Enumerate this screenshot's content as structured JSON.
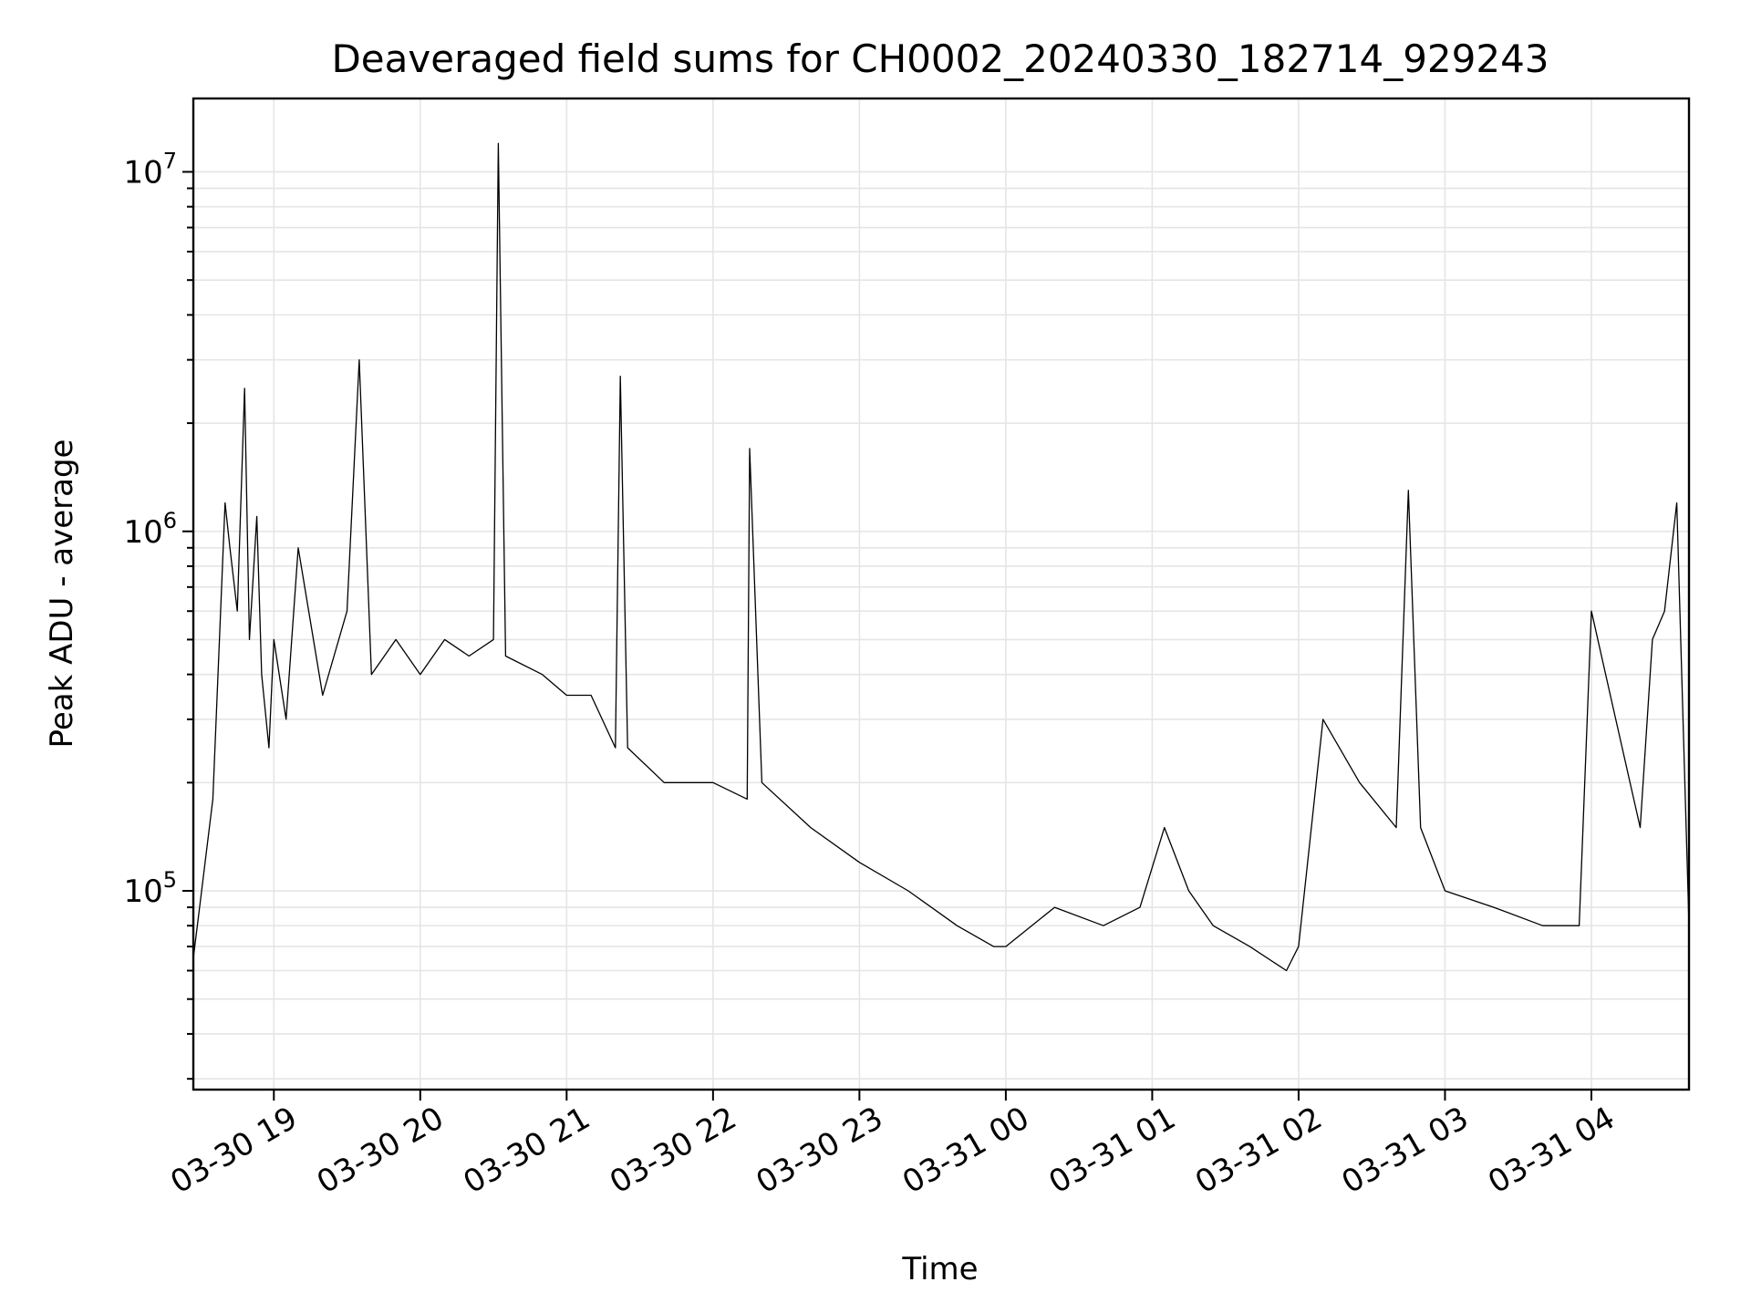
{
  "chart_data": {
    "type": "line",
    "title": "Deaveraged field sums for CH0002_20240330_182714_929243",
    "xlabel": "Time",
    "ylabel": "Peak ADU - average",
    "yscale": "log",
    "grid": true,
    "xlim": [
      "2024-03-30 18:27",
      "2024-03-31 04:40"
    ],
    "ylim": [
      28000,
      16000000
    ],
    "x_ticks": [
      {
        "label": "03-30 19",
        "time": "2024-03-30 19:00"
      },
      {
        "label": "03-30 20",
        "time": "2024-03-30 20:00"
      },
      {
        "label": "03-30 21",
        "time": "2024-03-30 21:00"
      },
      {
        "label": "03-30 22",
        "time": "2024-03-30 22:00"
      },
      {
        "label": "03-30 23",
        "time": "2024-03-30 23:00"
      },
      {
        "label": "03-31 00",
        "time": "2024-03-31 00:00"
      },
      {
        "label": "03-31 01",
        "time": "2024-03-31 01:00"
      },
      {
        "label": "03-31 02",
        "time": "2024-03-31 02:00"
      },
      {
        "label": "03-31 03",
        "time": "2024-03-31 03:00"
      },
      {
        "label": "03-31 04",
        "time": "2024-03-31 04:00"
      }
    ],
    "y_ticks": [
      {
        "base": "10",
        "exp": "5",
        "value": 100000
      },
      {
        "base": "10",
        "exp": "6",
        "value": 1000000
      },
      {
        "base": "10",
        "exp": "7",
        "value": 10000000
      }
    ],
    "series": [
      {
        "color": "#000000",
        "x": [
          "2024-03-30 18:27",
          "2024-03-30 18:30",
          "2024-03-30 18:35",
          "2024-03-30 18:40",
          "2024-03-30 18:42",
          "2024-03-30 18:45",
          "2024-03-30 18:48",
          "2024-03-30 18:50",
          "2024-03-30 18:53",
          "2024-03-30 18:55",
          "2024-03-30 18:58",
          "2024-03-30 19:00",
          "2024-03-30 19:05",
          "2024-03-30 19:10",
          "2024-03-30 19:20",
          "2024-03-30 19:30",
          "2024-03-30 19:35",
          "2024-03-30 19:40",
          "2024-03-30 19:50",
          "2024-03-30 20:00",
          "2024-03-30 20:10",
          "2024-03-30 20:20",
          "2024-03-30 20:30",
          "2024-03-30 20:32",
          "2024-03-30 20:35",
          "2024-03-30 20:50",
          "2024-03-30 21:00",
          "2024-03-30 21:10",
          "2024-03-30 21:20",
          "2024-03-30 21:22",
          "2024-03-30 21:25",
          "2024-03-30 21:40",
          "2024-03-30 22:00",
          "2024-03-30 22:14",
          "2024-03-30 22:15",
          "2024-03-30 22:20",
          "2024-03-30 22:40",
          "2024-03-30 23:00",
          "2024-03-30 23:20",
          "2024-03-30 23:40",
          "2024-03-30 23:55",
          "2024-03-31 00:00",
          "2024-03-31 00:20",
          "2024-03-31 00:40",
          "2024-03-31 00:55",
          "2024-03-31 01:05",
          "2024-03-31 01:15",
          "2024-03-31 01:25",
          "2024-03-31 01:40",
          "2024-03-31 01:55",
          "2024-03-31 02:00",
          "2024-03-31 02:10",
          "2024-03-31 02:25",
          "2024-03-31 02:40",
          "2024-03-31 02:45",
          "2024-03-31 02:50",
          "2024-03-31 03:00",
          "2024-03-31 03:20",
          "2024-03-31 03:40",
          "2024-03-31 03:55",
          "2024-03-31 04:00",
          "2024-03-31 04:10",
          "2024-03-31 04:20",
          "2024-03-31 04:25",
          "2024-03-31 04:30",
          "2024-03-31 04:35",
          "2024-03-31 04:40"
        ],
        "y": [
          65000,
          95000,
          180000,
          1200000,
          900000,
          600000,
          2500000,
          500000,
          1100000,
          400000,
          250000,
          500000,
          300000,
          900000,
          350000,
          600000,
          3000000,
          400000,
          500000,
          400000,
          500000,
          450000,
          500000,
          12000000,
          450000,
          400000,
          350000,
          350000,
          250000,
          2700000,
          250000,
          200000,
          200000,
          180000,
          1700000,
          200000,
          150000,
          120000,
          100000,
          80000,
          70000,
          70000,
          90000,
          80000,
          90000,
          150000,
          100000,
          80000,
          70000,
          60000,
          70000,
          300000,
          200000,
          150000,
          1300000,
          150000,
          100000,
          90000,
          80000,
          80000,
          600000,
          300000,
          150000,
          500000,
          600000,
          1200000,
          80000
        ]
      }
    ]
  }
}
